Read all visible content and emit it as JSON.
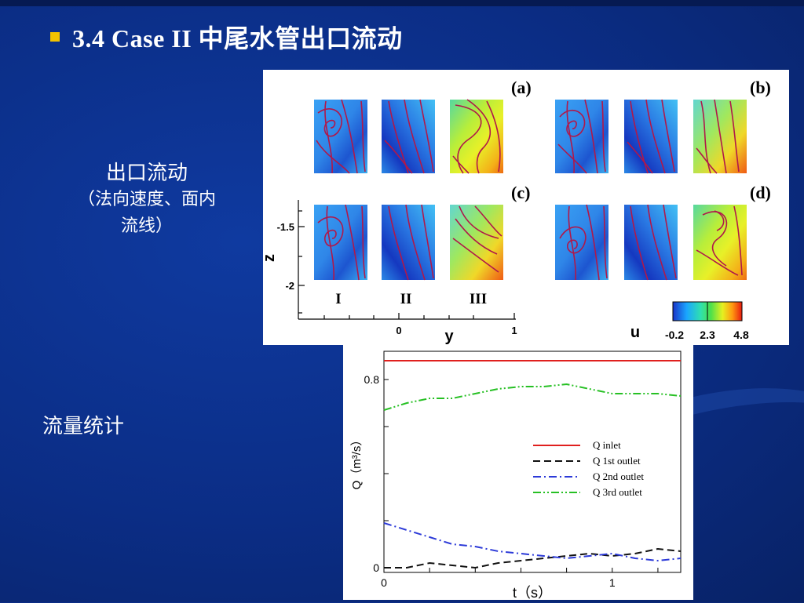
{
  "slide": {
    "title": "3.4  Case II 中尾水管出口流动",
    "outlet_label": "出口流动",
    "outlet_sub_1": "（法向速度、面内",
    "outlet_sub_2": "流线）",
    "flow_label": "流量统计"
  },
  "contour_figure": {
    "panel_labels": [
      "(a)",
      "(b)",
      "(c)",
      "(d)"
    ],
    "section_labels": [
      "I",
      "II",
      "III"
    ],
    "z_axis_label": "z",
    "z_ticks": [
      "-1.5",
      "-2"
    ],
    "y_axis_label": "y",
    "y_ticks": [
      "0",
      "1"
    ],
    "colorbar_label": "u",
    "colorbar_ticks": [
      "-0.2",
      "2.3",
      "4.8"
    ]
  },
  "chart_data": {
    "type": "line",
    "xlabel": "t（s）",
    "ylabel": "Q（m³/s）",
    "xlim": [
      0,
      1.3
    ],
    "ylim": [
      -0.02,
      0.92
    ],
    "x_ticks": [
      "0",
      "1"
    ],
    "y_ticks": [
      "0",
      "0.8"
    ],
    "legend_position": "right-middle",
    "series": [
      {
        "name": "Q inlet",
        "color": "#e0201e",
        "dash": "solid",
        "x": [
          0,
          1.3
        ],
        "y": [
          0.88,
          0.88
        ]
      },
      {
        "name": "Q 1st outlet",
        "color": "#111111",
        "dash": "dash",
        "x": [
          0,
          0.1,
          0.2,
          0.3,
          0.4,
          0.5,
          0.6,
          0.7,
          0.8,
          0.9,
          1.0,
          1.1,
          1.2,
          1.3
        ],
        "y": [
          0.0,
          0.0,
          0.02,
          0.01,
          0.0,
          0.02,
          0.03,
          0.04,
          0.05,
          0.06,
          0.05,
          0.06,
          0.08,
          0.07
        ]
      },
      {
        "name": "Q 2nd outlet",
        "color": "#2c3ad8",
        "dash": "dashdot",
        "x": [
          0,
          0.1,
          0.2,
          0.3,
          0.4,
          0.5,
          0.6,
          0.7,
          0.8,
          0.9,
          1.0,
          1.1,
          1.2,
          1.3
        ],
        "y": [
          0.19,
          0.16,
          0.13,
          0.1,
          0.09,
          0.07,
          0.06,
          0.05,
          0.04,
          0.05,
          0.06,
          0.04,
          0.03,
          0.04
        ]
      },
      {
        "name": "Q 3rd outlet",
        "color": "#27c024",
        "dash": "dashdotdot",
        "x": [
          0,
          0.1,
          0.2,
          0.3,
          0.4,
          0.5,
          0.6,
          0.7,
          0.8,
          0.9,
          1.0,
          1.1,
          1.2,
          1.3
        ],
        "y": [
          0.67,
          0.7,
          0.72,
          0.72,
          0.74,
          0.76,
          0.77,
          0.77,
          0.78,
          0.76,
          0.74,
          0.74,
          0.74,
          0.73
        ]
      }
    ]
  }
}
